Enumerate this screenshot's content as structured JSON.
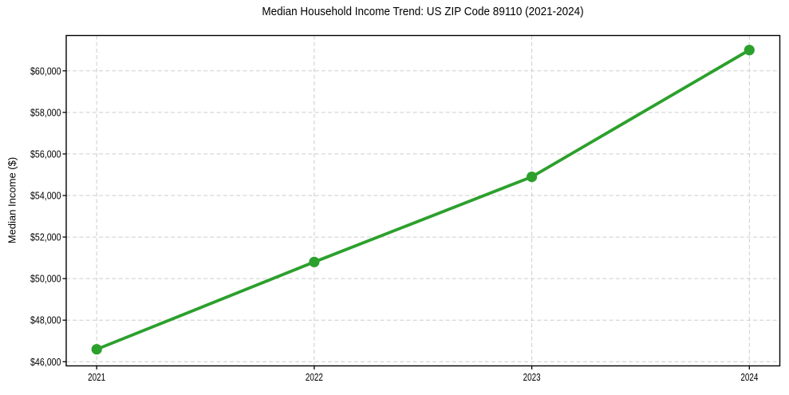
{
  "chart_data": {
    "type": "line",
    "title": "Median Household Income Trend: US ZIP Code 89110 (2021-2024)",
    "xlabel": "",
    "ylabel": "Median Income ($)",
    "x": [
      2021,
      2022,
      2023,
      2024
    ],
    "values": [
      46600,
      50800,
      54900,
      61000
    ],
    "xtick_labels": [
      "2021",
      "2022",
      "2023",
      "2024"
    ],
    "ytick_values": [
      46000,
      48000,
      50000,
      52000,
      54000,
      56000,
      58000,
      60000
    ],
    "ytick_labels": [
      "$46,000",
      "$48,000",
      "$50,000",
      "$52,000",
      "$54,000",
      "$56,000",
      "$58,000",
      "$60,000"
    ],
    "xlim": [
      2020.86,
      2024.14
    ],
    "ylim": [
      45800,
      61700
    ],
    "grid": true,
    "grid_style": "dashed",
    "legend_position": "none",
    "marker": "circle"
  },
  "colors": {
    "line": "#2ca02c",
    "marker": "#2ca02c",
    "grid": "#cdcdcd",
    "axis": "#000000",
    "text": "#000000",
    "background": "#ffffff"
  }
}
